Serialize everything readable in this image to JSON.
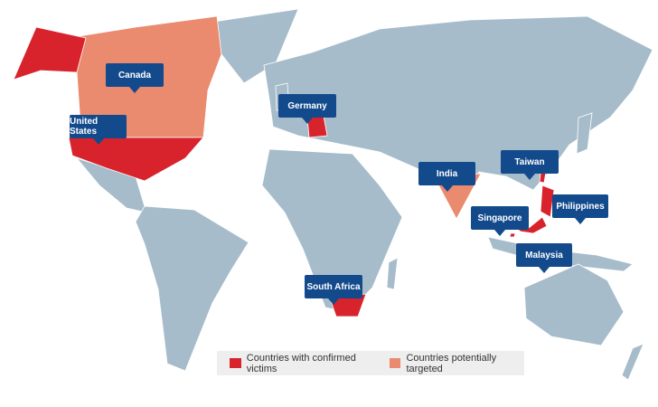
{
  "callouts": [
    {
      "label": "Canada"
    },
    {
      "label": "United States"
    },
    {
      "label": "Germany"
    },
    {
      "label": "India"
    },
    {
      "label": "Taiwan"
    },
    {
      "label": "Philippines"
    },
    {
      "label": "Singapore"
    },
    {
      "label": "Malaysia"
    },
    {
      "label": "South Africa"
    }
  ],
  "legend": [
    {
      "label": "Countries with confirmed victims"
    },
    {
      "label": "Countries potentially targeted"
    }
  ]
}
